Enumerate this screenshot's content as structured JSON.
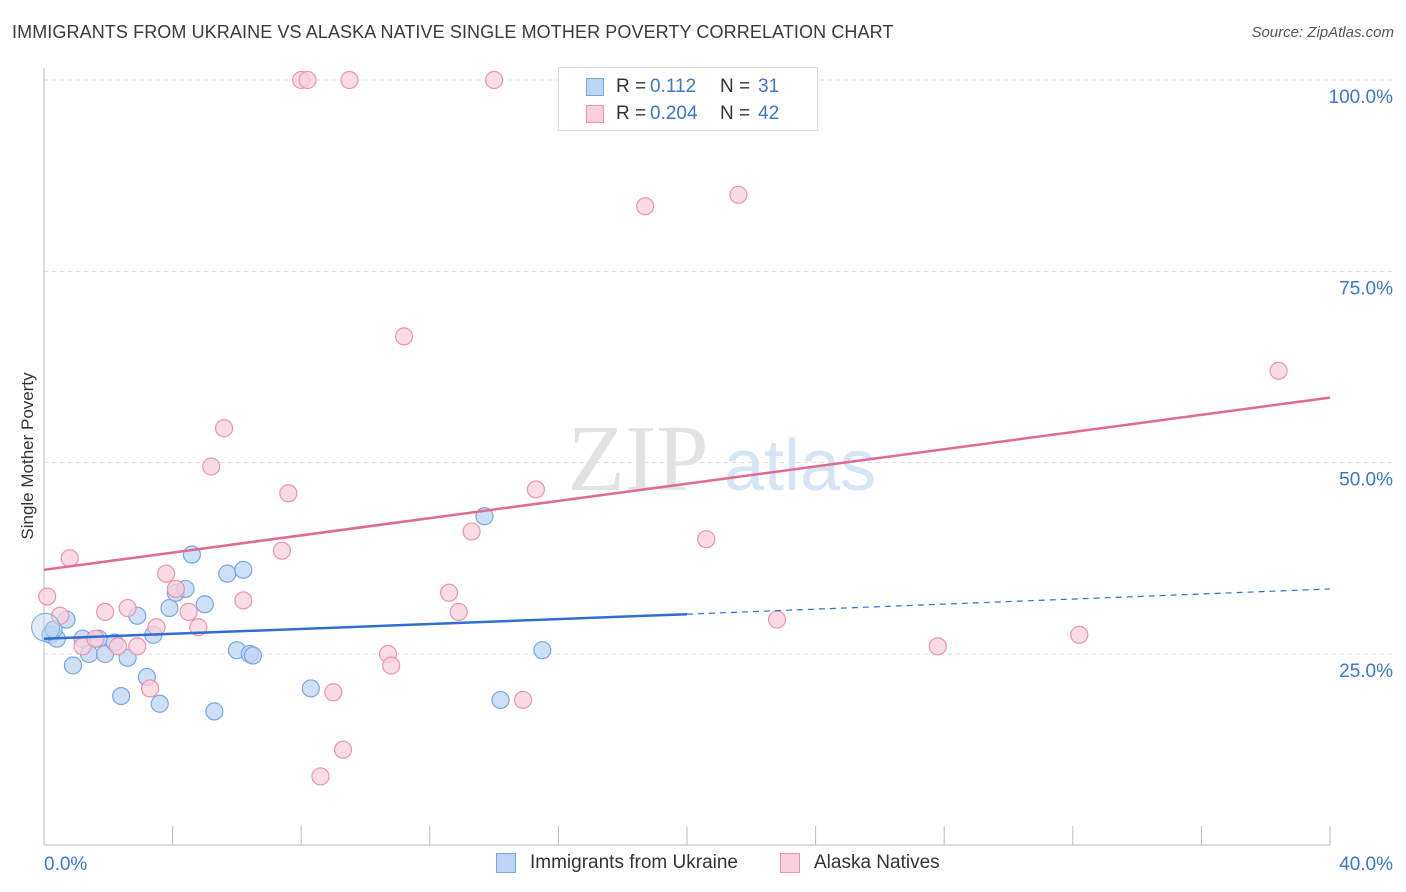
{
  "header": {
    "title": "IMMIGRANTS FROM UKRAINE VS ALASKA NATIVE SINGLE MOTHER POVERTY CORRELATION CHART",
    "source": "Source: ZipAtlas.com"
  },
  "watermark": {
    "zip": "ZIP",
    "atlas": "atlas"
  },
  "legend": {
    "rows": [
      {
        "r_label": "R =",
        "r_value": "0.112",
        "n_label": "N =",
        "n_value": "31",
        "color": "#a9c8f0",
        "border": "#7aa7e0"
      },
      {
        "r_label": "R =",
        "r_value": "0.204",
        "n_label": "N =",
        "n_value": "42",
        "color": "#f7c3d2",
        "border": "#ec94ae"
      }
    ]
  },
  "bottom_legend": {
    "items": [
      {
        "label": "Immigrants from Ukraine",
        "color": "#bcd5f5",
        "border": "#7aa7e0"
      },
      {
        "label": "Alaska Natives",
        "color": "#f9cfdb",
        "border": "#ec94ae"
      }
    ]
  },
  "chart_data": {
    "type": "scatter",
    "title": "IMMIGRANTS FROM UKRAINE VS ALASKA NATIVE SINGLE MOTHER POVERTY CORRELATION CHART",
    "xlabel": "",
    "ylabel": "Single Mother Poverty",
    "xlim": [
      0,
      40
    ],
    "ylim": [
      0,
      100
    ],
    "x_tick_labels": [
      "0.0%",
      "40.0%"
    ],
    "y_ticks": [
      25,
      50,
      75,
      100
    ],
    "y_tick_labels": [
      "25.0%",
      "50.0%",
      "75.0%",
      "100.0%"
    ],
    "grid": true,
    "series": [
      {
        "name": "Immigrants from Ukraine",
        "color": "#7aa7e0",
        "fill": "#bcd5f5",
        "line_color": "#2f6fcf",
        "trend": {
          "x0": 0,
          "y0": 27.0,
          "x1": 20,
          "y1": 30.2,
          "dash_x1": 40,
          "dash_y1": 33.5
        },
        "points": [
          [
            0.2,
            27.5
          ],
          [
            0.4,
            27.0
          ],
          [
            0.7,
            29.5
          ],
          [
            0.9,
            23.5
          ],
          [
            1.2,
            27.0
          ],
          [
            1.4,
            25.0
          ],
          [
            1.7,
            27.0
          ],
          [
            1.9,
            25.0
          ],
          [
            2.2,
            26.5
          ],
          [
            2.4,
            19.5
          ],
          [
            2.6,
            24.5
          ],
          [
            2.9,
            30.0
          ],
          [
            3.2,
            22.0
          ],
          [
            3.4,
            27.5
          ],
          [
            3.6,
            18.5
          ],
          [
            3.9,
            31.0
          ],
          [
            4.1,
            33.0
          ],
          [
            4.4,
            33.5
          ],
          [
            4.6,
            38.0
          ],
          [
            5.0,
            31.5
          ],
          [
            5.3,
            17.5
          ],
          [
            5.7,
            35.5
          ],
          [
            6.0,
            25.5
          ],
          [
            6.2,
            36.0
          ],
          [
            6.4,
            25.0
          ],
          [
            6.5,
            24.8
          ],
          [
            8.3,
            20.5
          ],
          [
            13.7,
            43.0
          ],
          [
            14.2,
            19.0
          ],
          [
            15.5,
            25.5
          ],
          [
            0.3,
            28.2
          ]
        ]
      },
      {
        "name": "Alaska Natives",
        "color": "#ec94ae",
        "fill": "#f9cfdb",
        "line_color": "#e06a92",
        "trend": {
          "x0": 0,
          "y0": 36.0,
          "x1": 40,
          "y1": 58.5
        },
        "points": [
          [
            0.1,
            32.5
          ],
          [
            0.5,
            30.0
          ],
          [
            0.8,
            37.5
          ],
          [
            1.2,
            26.0
          ],
          [
            1.6,
            27.0
          ],
          [
            1.9,
            30.5
          ],
          [
            2.3,
            26.0
          ],
          [
            2.6,
            31.0
          ],
          [
            2.9,
            26.0
          ],
          [
            3.3,
            20.5
          ],
          [
            3.5,
            28.5
          ],
          [
            3.8,
            35.5
          ],
          [
            4.1,
            33.5
          ],
          [
            4.5,
            30.5
          ],
          [
            4.8,
            28.5
          ],
          [
            5.2,
            49.5
          ],
          [
            5.6,
            54.5
          ],
          [
            6.2,
            32.0
          ],
          [
            7.4,
            38.5
          ],
          [
            7.6,
            46.0
          ],
          [
            8.0,
            100.0
          ],
          [
            8.2,
            100.0
          ],
          [
            8.6,
            9.0
          ],
          [
            9.0,
            20.0
          ],
          [
            9.3,
            12.5
          ],
          [
            9.5,
            100.0
          ],
          [
            10.7,
            25.0
          ],
          [
            10.8,
            23.5
          ],
          [
            11.2,
            66.5
          ],
          [
            12.6,
            33.0
          ],
          [
            12.9,
            30.5
          ],
          [
            13.3,
            41.0
          ],
          [
            14.0,
            100.0
          ],
          [
            14.9,
            19.0
          ],
          [
            15.3,
            46.5
          ],
          [
            18.7,
            83.5
          ],
          [
            20.6,
            40.0
          ],
          [
            21.6,
            85.0
          ],
          [
            22.8,
            29.5
          ],
          [
            27.8,
            26.0
          ],
          [
            32.2,
            27.5
          ],
          [
            38.4,
            62.0
          ]
        ]
      }
    ]
  }
}
